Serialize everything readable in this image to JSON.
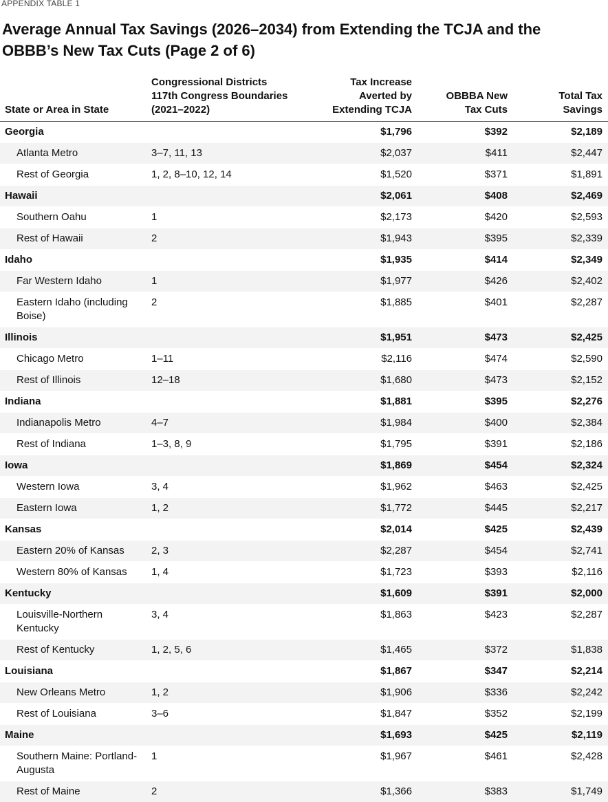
{
  "header": {
    "label": "APPENDIX TABLE 1",
    "title": "Average Annual Tax Savings (2026–2034) from Extending the TCJA and the OBBB’s New Tax Cuts (Page 2 of 6)"
  },
  "table": {
    "columns": [
      "State or Area in State",
      "Congressional Districts\n117th Congress Boundaries\n(2021–2022)",
      "Tax Increase\nAverted by\nExtending TCJA",
      "OBBBA New\nTax Cuts",
      "Total Tax\nSavings"
    ],
    "states": [
      {
        "row": [
          "Georgia",
          "",
          "$1,796",
          "$392",
          "$2,189"
        ],
        "areas": [
          [
            "Atlanta Metro",
            "3–7, 11, 13",
            "$2,037",
            "$411",
            "$2,447"
          ],
          [
            "Rest of Georgia",
            "1, 2, 8–10, 12, 14",
            "$1,520",
            "$371",
            "$1,891"
          ]
        ]
      },
      {
        "row": [
          "Hawaii",
          "",
          "$2,061",
          "$408",
          "$2,469"
        ],
        "areas": [
          [
            "Southern Oahu",
            "1",
            "$2,173",
            "$420",
            "$2,593"
          ],
          [
            "Rest of Hawaii",
            "2",
            "$1,943",
            "$395",
            "$2,339"
          ]
        ]
      },
      {
        "row": [
          "Idaho",
          "",
          "$1,935",
          "$414",
          "$2,349"
        ],
        "areas": [
          [
            "Far Western Idaho",
            "1",
            "$1,977",
            "$426",
            "$2,402"
          ],
          [
            "Eastern Idaho (including Boise)",
            "2",
            "$1,885",
            "$401",
            "$2,287"
          ]
        ]
      },
      {
        "row": [
          "Illinois",
          "",
          "$1,951",
          "$473",
          "$2,425"
        ],
        "areas": [
          [
            "Chicago Metro",
            "1–11",
            "$2,116",
            "$474",
            "$2,590"
          ],
          [
            "Rest of Illinois",
            "12–18",
            "$1,680",
            "$473",
            "$2,152"
          ]
        ]
      },
      {
        "row": [
          "Indiana",
          "",
          "$1,881",
          "$395",
          "$2,276"
        ],
        "areas": [
          [
            "Indianapolis Metro",
            "4–7",
            "$1,984",
            "$400",
            "$2,384"
          ],
          [
            "Rest of Indiana",
            "1–3, 8, 9",
            "$1,795",
            "$391",
            "$2,186"
          ]
        ]
      },
      {
        "row": [
          "Iowa",
          "",
          "$1,869",
          "$454",
          "$2,324"
        ],
        "areas": [
          [
            "Western Iowa",
            "3, 4",
            "$1,962",
            "$463",
            "$2,425"
          ],
          [
            "Eastern Iowa",
            "1, 2",
            "$1,772",
            "$445",
            "$2,217"
          ]
        ]
      },
      {
        "row": [
          "Kansas",
          "",
          "$2,014",
          "$425",
          "$2,439"
        ],
        "areas": [
          [
            "Eastern 20% of Kansas",
            "2, 3",
            "$2,287",
            "$454",
            "$2,741"
          ],
          [
            "Western 80% of Kansas",
            "1, 4",
            "$1,723",
            "$393",
            "$2,116"
          ]
        ]
      },
      {
        "row": [
          "Kentucky",
          "",
          "$1,609",
          "$391",
          "$2,000"
        ],
        "areas": [
          [
            "Louisville-Northern Kentucky",
            "3, 4",
            "$1,863",
            "$423",
            "$2,287"
          ],
          [
            "Rest of Kentucky",
            "1, 2, 5, 6",
            "$1,465",
            "$372",
            "$1,838"
          ]
        ]
      },
      {
        "row": [
          "Louisiana",
          "",
          "$1,867",
          "$347",
          "$2,214"
        ],
        "areas": [
          [
            "New Orleans Metro",
            "1, 2",
            "$1,906",
            "$336",
            "$2,242"
          ],
          [
            "Rest of Louisiana",
            "3–6",
            "$1,847",
            "$352",
            "$2,199"
          ]
        ]
      },
      {
        "row": [
          "Maine",
          "",
          "$1,693",
          "$425",
          "$2,119"
        ],
        "areas": [
          [
            "Southern Maine: Portland-Augusta",
            "1",
            "$1,967",
            "$461",
            "$2,428"
          ],
          [
            "Rest of Maine",
            "2",
            "$1,366",
            "$383",
            "$1,749"
          ]
        ]
      }
    ]
  }
}
